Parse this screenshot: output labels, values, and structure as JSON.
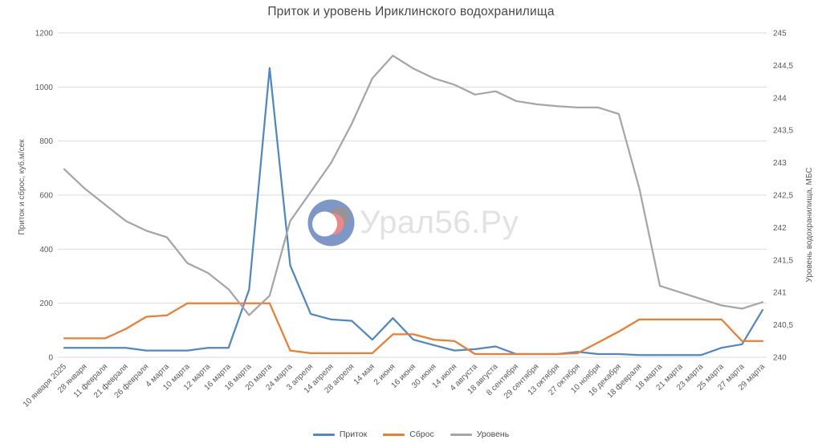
{
  "watermark": {
    "text": "Урал56.Ру"
  },
  "chart_data": {
    "type": "line",
    "title": "Приток и уровень Ириклинского водохранилища",
    "grid": true,
    "legend_position": "bottom",
    "categories": [
      "10 января 2025",
      "28 января",
      "11 февраля",
      "21 февраля",
      "26 февраля",
      "4 марта",
      "10 марта",
      "12 марта",
      "16 марта",
      "18 марта",
      "20 марта",
      "24 марта",
      "3 апреля",
      "14 апреля",
      "28 апреля",
      "14 мая",
      "2 июня",
      "16 июня",
      "30 июня",
      "14 июля",
      "4 августа",
      "18 августа",
      "8 сентября",
      "29 сентября",
      "13 октября",
      "27 октября",
      "10 ноября",
      "16 декабря",
      "18 февраля",
      "18 марта",
      "21 марта",
      "23 марта",
      "25 марта",
      "27 марта",
      "29 марта"
    ],
    "left_axis": {
      "label": "Приток и сброс, куб.м/сек",
      "min": 0,
      "max": 1200,
      "step": 200,
      "ticks": [
        0,
        200,
        400,
        600,
        800,
        1000,
        1200
      ]
    },
    "right_axis": {
      "label": "Уровень водохранилища, МБС",
      "min": 240,
      "max": 245,
      "step": 0.5,
      "tick_labels": [
        "240",
        "240,5",
        "241",
        "241,5",
        "242",
        "242,5",
        "243",
        "243,5",
        "244",
        "244,5",
        "245"
      ]
    },
    "series": [
      {
        "name": "Приток",
        "key": "inflow",
        "axis": "left",
        "color": "#5088c5",
        "values": [
          35,
          35,
          35,
          35,
          25,
          25,
          25,
          35,
          35,
          250,
          1070,
          340,
          160,
          140,
          135,
          65,
          145,
          65,
          45,
          25,
          30,
          40,
          12,
          12,
          12,
          20,
          12,
          12,
          8,
          8,
          8,
          8,
          35,
          48,
          175
        ]
      },
      {
        "name": "Сброс",
        "key": "discharge",
        "axis": "left",
        "color": "#ed7d31",
        "values": [
          70,
          70,
          70,
          105,
          150,
          155,
          200,
          200,
          200,
          200,
          200,
          25,
          15,
          15,
          15,
          15,
          85,
          85,
          65,
          60,
          12,
          12,
          12,
          12,
          12,
          15,
          55,
          95,
          140,
          140,
          140,
          140,
          140,
          60,
          60
        ]
      },
      {
        "name": "Уровень",
        "key": "level",
        "axis": "right",
        "color": "#a6a6a6",
        "values": [
          242.9,
          242.6,
          242.35,
          242.1,
          241.95,
          241.85,
          241.45,
          241.3,
          241.05,
          240.65,
          240.95,
          242.1,
          242.55,
          243.0,
          243.6,
          244.3,
          244.65,
          244.45,
          244.3,
          244.2,
          244.05,
          244.1,
          243.95,
          243.9,
          243.87,
          243.85,
          243.85,
          243.75,
          242.6,
          241.1,
          241.0,
          240.9,
          240.8,
          240.75,
          240.85
        ]
      }
    ]
  }
}
